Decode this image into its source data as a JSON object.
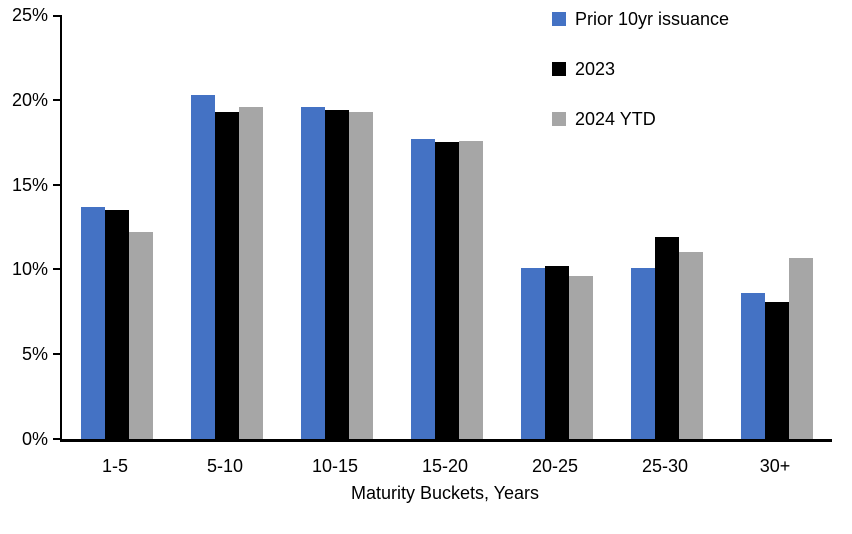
{
  "chart": {
    "yticks": [
      "0%",
      "5%",
      "10%",
      "15%",
      "20%",
      "25%"
    ],
    "x_axis_title": "Maturity Buckets, Years"
  },
  "chart_data": {
    "type": "bar",
    "title": "",
    "xlabel": "Maturity Buckets, Years",
    "ylabel": "",
    "ylim": [
      0,
      25
    ],
    "ytick_step": 5,
    "ytick_format": "percent",
    "grid": false,
    "legend_position": "top-right",
    "categories": [
      "1-5",
      "5-10",
      "10-15",
      "15-20",
      "20-25",
      "25-30",
      "30+"
    ],
    "series": [
      {
        "name": "Prior 10yr issuance",
        "color": "#4472C4",
        "values": [
          13.7,
          20.3,
          19.6,
          17.7,
          10.1,
          10.1,
          8.6
        ]
      },
      {
        "name": "2023",
        "color": "#000000",
        "values": [
          13.5,
          19.3,
          19.4,
          17.5,
          10.2,
          11.9,
          8.1
        ]
      },
      {
        "name": "2024 YTD",
        "color": "#A6A6A6",
        "values": [
          12.2,
          19.6,
          19.3,
          17.6,
          9.6,
          11.0,
          10.7
        ]
      }
    ]
  }
}
